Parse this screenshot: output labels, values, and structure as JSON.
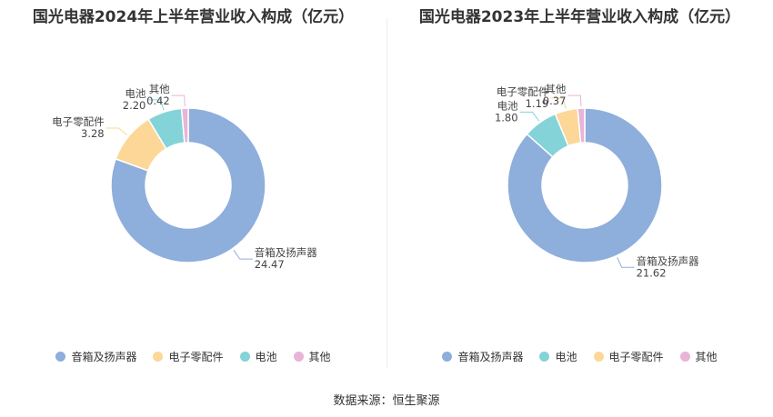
{
  "source_label": "数据来源：恒生聚源",
  "chart_data": [
    {
      "type": "pie",
      "title": "国光电器2024年上半年营业收入构成（亿元）",
      "slices": [
        {
          "name": "音箱及扬声器",
          "value": 24.47,
          "value_label": "24.47",
          "color": "#8eaedb"
        },
        {
          "name": "电子零配件",
          "value": 3.28,
          "value_label": "3.28",
          "color": "#fcd797"
        },
        {
          "name": "电池",
          "value": 2.2,
          "value_label": "2.20",
          "color": "#83d3d8"
        },
        {
          "name": "其他",
          "value": 0.42,
          "value_label": "0.42",
          "color": "#e8b4d8"
        }
      ],
      "legend": [
        "音箱及扬声器",
        "电子零配件",
        "电池",
        "其他"
      ],
      "legend_placement": "bottom"
    },
    {
      "type": "pie",
      "title": "国光电器2023年上半年营业收入构成（亿元）",
      "slices": [
        {
          "name": "音箱及扬声器",
          "value": 21.62,
          "value_label": "21.62",
          "color": "#8eaedb"
        },
        {
          "name": "电池",
          "value": 1.8,
          "value_label": "1.80",
          "color": "#83d3d8"
        },
        {
          "name": "电子零配件",
          "value": 1.19,
          "value_label": "1.19",
          "color": "#fcd797"
        },
        {
          "name": "其他",
          "value": 0.37,
          "value_label": "0.37",
          "color": "#e8b4d8"
        }
      ],
      "legend": [
        "音箱及扬声器",
        "电池",
        "电子零配件",
        "其他"
      ],
      "legend_placement": "bottom"
    }
  ]
}
